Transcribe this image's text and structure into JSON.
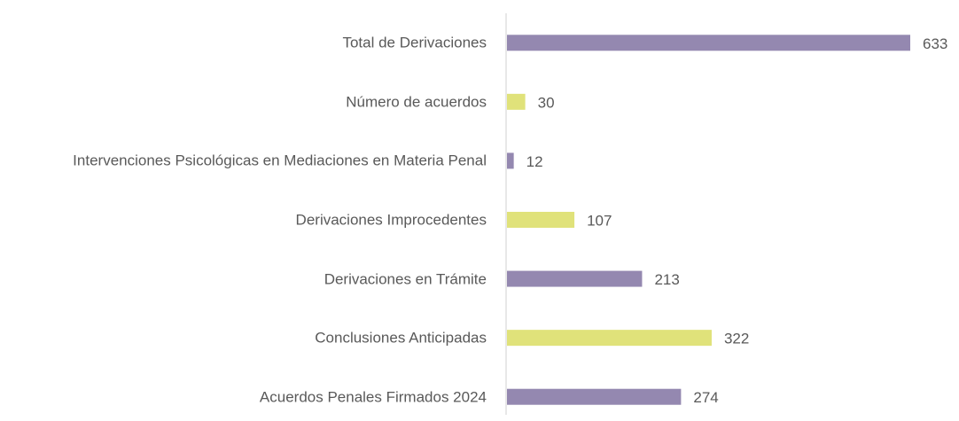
{
  "chart_data": {
    "type": "bar",
    "orientation": "horizontal",
    "categories": [
      "Total de Derivaciones",
      "Número de acuerdos",
      "Intervenciones Psicológicas en Mediaciones en Materia Penal",
      "Derivaciones Improcedentes",
      "Derivaciones en Trámite",
      "Conclusiones Anticipadas",
      "Acuerdos Penales Firmados 2024"
    ],
    "values": [
      633,
      30,
      12,
      107,
      213,
      322,
      274
    ],
    "colors": [
      "#9488b0",
      "#e0e27a",
      "#9488b0",
      "#e0e27a",
      "#9488b0",
      "#e0e27a",
      "#9488b0"
    ]
  }
}
